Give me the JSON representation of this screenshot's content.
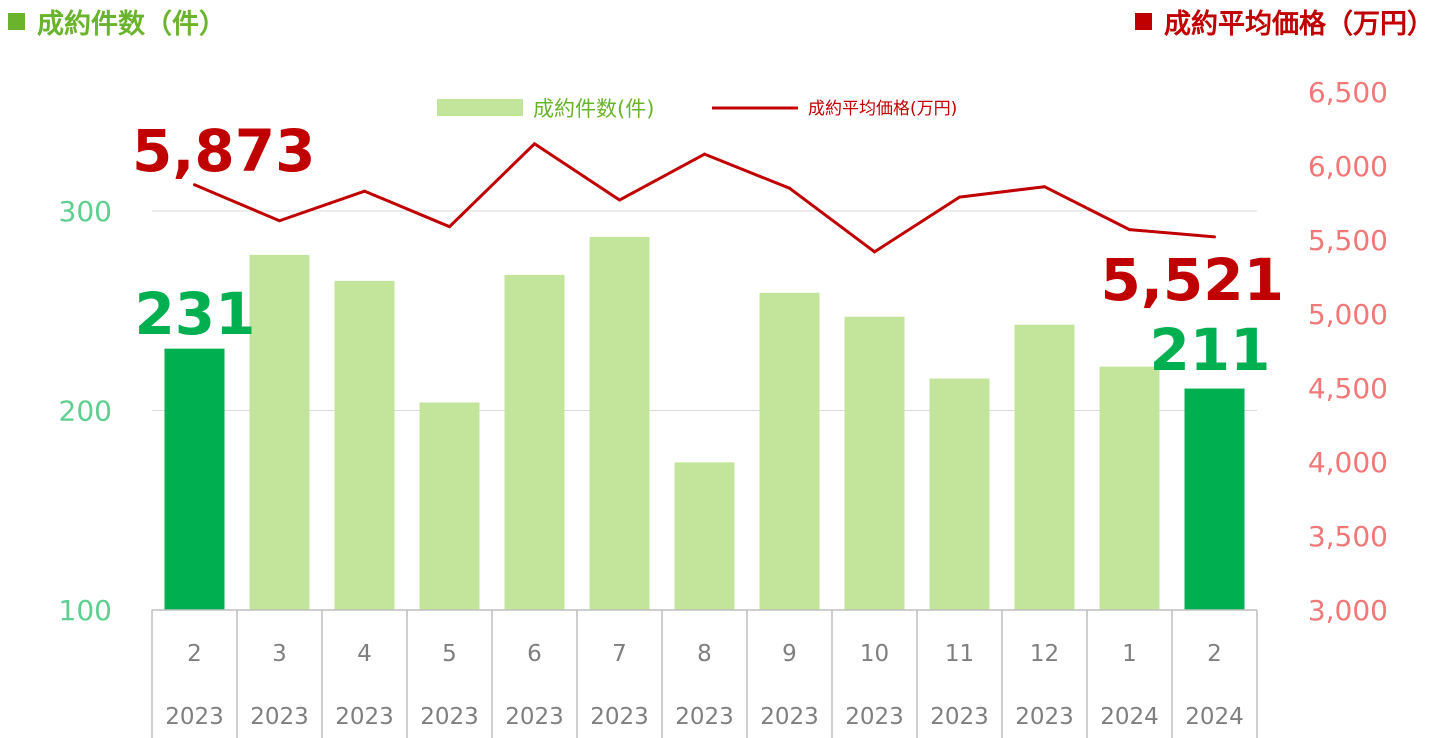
{
  "header": {
    "left_title": "成約件数（件）",
    "right_title": "成約平均価格（万円）"
  },
  "colors": {
    "bar": "#c3e49b",
    "bar_highlight": "#00b050",
    "line": "#c00000",
    "left_axis": "#5fcf8f",
    "right_axis": "#f07878",
    "header_left": "#6ab42d",
    "header_right": "#c00000"
  },
  "chart_data": {
    "type": "bar",
    "categories": [
      "2",
      "3",
      "4",
      "5",
      "6",
      "7",
      "8",
      "9",
      "10",
      "11",
      "12",
      "1",
      "2"
    ],
    "category_years": [
      "2023",
      "2023",
      "2023",
      "2023",
      "2023",
      "2023",
      "2023",
      "2023",
      "2023",
      "2023",
      "2023",
      "2024",
      "2024"
    ],
    "series": [
      {
        "name": "成約件数(件)",
        "type": "bar",
        "axis": "left",
        "values": [
          231,
          278,
          265,
          204,
          268,
          287,
          174,
          259,
          247,
          216,
          243,
          222,
          211
        ],
        "highlight_indices": [
          0,
          12
        ]
      },
      {
        "name": "成約平均価格(万円)",
        "type": "line",
        "axis": "right",
        "values": [
          5873,
          5630,
          5830,
          5590,
          6150,
          5770,
          6080,
          5850,
          5420,
          5790,
          5860,
          5570,
          5521
        ]
      }
    ],
    "left_axis": {
      "ylim": [
        100,
        300
      ],
      "ticks": [
        "100",
        "200",
        "300"
      ]
    },
    "right_axis": {
      "ylim": [
        3000,
        6500
      ],
      "ticks": [
        "3,000",
        "3,500",
        "4,000",
        "4,500",
        "5,000",
        "5,500",
        "6,000",
        "6,500"
      ]
    },
    "legend": {
      "placement": "top-center",
      "bar_label": "成約件数(件)",
      "line_label": "成約平均価格(万円)"
    },
    "annotations": {
      "first_bar": "231",
      "last_bar": "211",
      "first_price": "5,873",
      "last_price": "5,521"
    },
    "grid": true
  }
}
